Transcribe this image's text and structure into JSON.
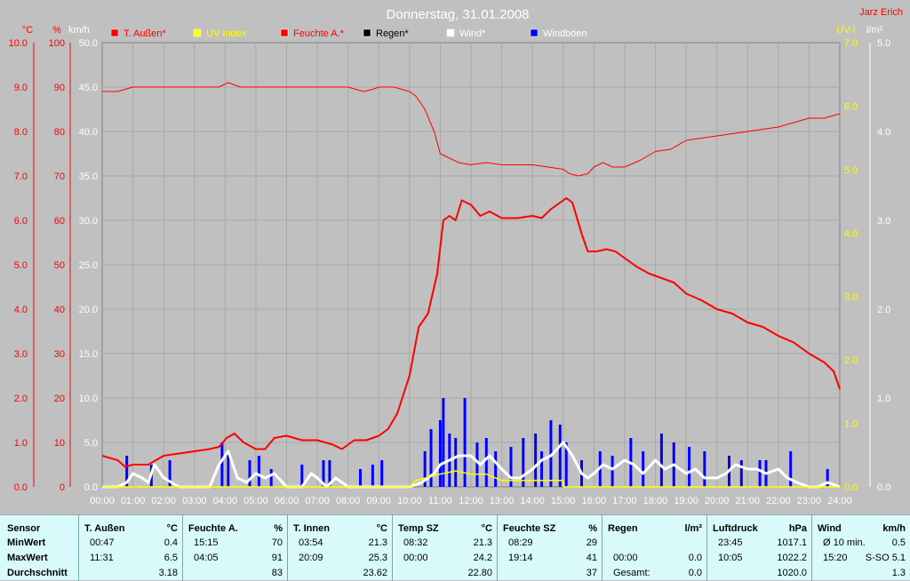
{
  "title": "Donnerstag, 31.01.2008",
  "author": "Jarz Erich",
  "colors": {
    "background": "#c0c0c0",
    "temp": "#ff0000",
    "uv": "#ffff00",
    "humidity": "#ff0000",
    "rain": "#000000",
    "wind": "#ffffff",
    "gusts": "#0000ff"
  },
  "axes": {
    "left1": {
      "unit": "°C",
      "ticks": [
        "10.0",
        "9.0",
        "8.0",
        "7.0",
        "6.0",
        "5.0",
        "4.0",
        "3.0",
        "2.0",
        "1.0",
        "0.0"
      ]
    },
    "left2": {
      "unit": "%",
      "ticks": [
        "100",
        "90",
        "80",
        "70",
        "60",
        "50",
        "40",
        "30",
        "20",
        "10",
        "0"
      ]
    },
    "left3": {
      "unit": "km/h",
      "ticks": [
        "50.0",
        "45.0",
        "40.0",
        "35.0",
        "30.0",
        "25.0",
        "20.0",
        "15.0",
        "10.0",
        "5.0",
        "0.0"
      ]
    },
    "right1": {
      "unit": "UV-I",
      "ticks": [
        "7.0",
        "6.0",
        "5.0",
        "4.0",
        "3.0",
        "2.0",
        "1.0",
        "0.0"
      ]
    },
    "right2": {
      "unit": "l/m²",
      "ticks": [
        "5.0",
        "4.0",
        "3.0",
        "2.0",
        "1.0",
        "0.0"
      ]
    },
    "x_ticks": [
      "00:00",
      "01:00",
      "02:00",
      "03:00",
      "04:00",
      "05:00",
      "06:00",
      "07:00",
      "08:00",
      "09:00",
      "10:00",
      "11:00",
      "12:00",
      "13:00",
      "14:00",
      "15:00",
      "16:00",
      "17:00",
      "18:00",
      "19:00",
      "20:00",
      "21:00",
      "22:00",
      "23:00",
      "24:00"
    ]
  },
  "legend": [
    {
      "label": "T. Außen*",
      "color": "#ff0000",
      "text_color": "#ff0000"
    },
    {
      "label": "UV Index",
      "color": "#ffff00",
      "text_color": "#ffff00"
    },
    {
      "label": "Feuchte A.*",
      "color": "#ff0000",
      "text_color": "#ff0000"
    },
    {
      "label": "Regen*",
      "color": "#000000",
      "text_color": "#000000"
    },
    {
      "label": "Wind*",
      "color": "#ffffff",
      "text_color": "#ffffff"
    },
    {
      "label": "Windböen",
      "color": "#0000ff",
      "text_color": "#ffffff"
    }
  ],
  "chart_data": {
    "type": "line",
    "x_unit": "hours",
    "xlim": [
      0,
      24
    ],
    "grid": true,
    "legend_position": "top",
    "series": [
      {
        "name": "T. Außen*",
        "axis": "°C",
        "ylim": [
          0,
          10
        ],
        "x": [
          0,
          0.5,
          0.75,
          1,
          1.5,
          2,
          2.5,
          3,
          3.5,
          3.8,
          4.05,
          4.3,
          4.6,
          5,
          5.3,
          5.6,
          6,
          6.5,
          7,
          7.5,
          7.8,
          8.2,
          8.6,
          9,
          9.3,
          9.6,
          10,
          10.3,
          10.6,
          10.9,
          11.1,
          11.3,
          11.5,
          11.7,
          12,
          12.3,
          12.6,
          13,
          13.5,
          14,
          14.3,
          14.6,
          14.9,
          15.1,
          15.3,
          15.6,
          15.8,
          16.1,
          16.4,
          16.7,
          17,
          17.4,
          17.8,
          18.2,
          18.6,
          19,
          19.5,
          20,
          20.5,
          21,
          21.5,
          22,
          22.5,
          23,
          23.5,
          23.8,
          24
        ],
        "y": [
          0.7,
          0.6,
          0.45,
          0.5,
          0.5,
          0.7,
          0.75,
          0.8,
          0.85,
          0.9,
          1.1,
          1.2,
          1.0,
          0.85,
          0.85,
          1.1,
          1.15,
          1.05,
          1.05,
          0.95,
          0.85,
          1.05,
          1.05,
          1.15,
          1.3,
          1.65,
          2.5,
          3.6,
          3.9,
          4.8,
          6.0,
          6.1,
          6.0,
          6.45,
          6.35,
          6.1,
          6.2,
          6.05,
          6.05,
          6.1,
          6.05,
          6.25,
          6.4,
          6.5,
          6.4,
          5.7,
          5.3,
          5.3,
          5.35,
          5.3,
          5.15,
          4.95,
          4.8,
          4.7,
          4.6,
          4.35,
          4.2,
          4.0,
          3.9,
          3.7,
          3.6,
          3.4,
          3.25,
          3.0,
          2.8,
          2.6,
          2.2
        ]
      },
      {
        "name": "Feuchte A.*",
        "axis": "%",
        "ylim": [
          0,
          100
        ],
        "x": [
          0,
          0.5,
          1,
          2,
          3,
          3.8,
          4.1,
          4.5,
          5,
          5.5,
          6,
          7,
          7.5,
          8,
          8.5,
          8.8,
          9,
          9.5,
          10,
          10.2,
          10.5,
          10.8,
          11,
          11.3,
          11.6,
          12,
          12.5,
          13,
          13.5,
          14,
          14.5,
          15,
          15.2,
          15.5,
          15.8,
          16,
          16.3,
          16.6,
          17,
          17.5,
          18,
          18.5,
          19,
          19.5,
          20,
          20.5,
          21,
          21.5,
          22,
          22.5,
          23,
          23.5,
          24
        ],
        "y": [
          89,
          89,
          90,
          90,
          90,
          90,
          91,
          90,
          90,
          90,
          90,
          90,
          90,
          90,
          89,
          89.5,
          90,
          90,
          89,
          88,
          85,
          80,
          75,
          74,
          73,
          72.5,
          73,
          72.5,
          72.5,
          72.5,
          72,
          71.5,
          70.5,
          70,
          70.5,
          72,
          73,
          72,
          72,
          73.5,
          75.5,
          76,
          78,
          78.5,
          79,
          79.5,
          80,
          80.5,
          81,
          82,
          83,
          83,
          84
        ]
      },
      {
        "name": "UV Index",
        "axis": "UV-I",
        "ylim": [
          0,
          7
        ],
        "x": [
          0,
          10,
          10.2,
          11,
          11.5,
          12,
          12.5,
          13,
          13.5,
          14,
          14.5,
          15,
          15.01,
          24
        ],
        "y": [
          0,
          0,
          0.1,
          0.2,
          0.25,
          0.2,
          0.2,
          0.1,
          0.1,
          0.1,
          0.1,
          0.1,
          0,
          0
        ]
      },
      {
        "name": "Wind*",
        "axis": "km/h",
        "ylim": [
          0,
          50
        ],
        "x": [
          0,
          0.5,
          0.8,
          1,
          1.3,
          1.5,
          1.7,
          2,
          2.5,
          3,
          3.5,
          3.8,
          4.1,
          4.4,
          4.7,
          5,
          5.3,
          5.6,
          6,
          6.5,
          6.8,
          7,
          7.3,
          7.6,
          8,
          8.5,
          9,
          9.5,
          10,
          10.4,
          10.8,
          11,
          11.3,
          11.6,
          12,
          12.3,
          12.6,
          13,
          13.3,
          13.6,
          14,
          14.3,
          14.6,
          15,
          15.3,
          15.6,
          15.8,
          16,
          16.3,
          16.6,
          17,
          17.3,
          17.6,
          18,
          18.3,
          18.6,
          19,
          19.3,
          19.6,
          20,
          20.3,
          20.6,
          21,
          21.3,
          21.6,
          22,
          22.3,
          22.6,
          23,
          23.3,
          23.6,
          24
        ],
        "y": [
          0,
          0,
          0.5,
          1.5,
          1,
          0.5,
          2.5,
          1,
          0,
          0,
          0,
          2.5,
          4,
          1,
          0.5,
          1.5,
          1,
          1.5,
          0,
          0,
          1.5,
          1,
          0,
          1,
          0,
          0,
          0,
          0,
          0,
          0.5,
          1.5,
          2.5,
          3,
          3.5,
          3.5,
          2.5,
          3.5,
          2,
          1,
          1,
          2,
          3,
          3.5,
          5,
          3.5,
          1.5,
          1,
          1.5,
          2.5,
          2,
          3,
          2.5,
          1.5,
          3,
          2,
          2.5,
          1.5,
          2,
          1,
          1,
          1.5,
          2.5,
          2,
          2,
          1.5,
          2,
          1,
          0.5,
          0,
          0,
          0.5,
          0
        ]
      },
      {
        "name": "Windböen",
        "axis": "km/h",
        "ylim": [
          0,
          50
        ],
        "x": [
          0.8,
          1.6,
          2.2,
          3.9,
          4.1,
          4.8,
          5.1,
          5.5,
          6.5,
          7.2,
          7.4,
          8.4,
          8.8,
          9.1,
          10.5,
          10.7,
          11.0,
          11.1,
          11.3,
          11.5,
          11.8,
          12.2,
          12.5,
          12.8,
          13.3,
          13.7,
          14.1,
          14.3,
          14.6,
          14.9,
          15.1,
          15.6,
          16.2,
          16.6,
          17.2,
          17.6,
          18.2,
          18.6,
          19.1,
          19.6,
          20.4,
          20.8,
          21.4,
          21.6,
          22.4,
          23.6
        ],
        "y": [
          3.5,
          2.5,
          3.0,
          5.0,
          4.0,
          3.0,
          3.5,
          2.0,
          2.5,
          3.0,
          3.0,
          2.0,
          2.5,
          3.0,
          4.0,
          6.5,
          7.5,
          10.0,
          6.0,
          5.5,
          10.0,
          5.0,
          5.5,
          4.0,
          4.5,
          5.5,
          6.0,
          4.0,
          7.5,
          7.0,
          5.0,
          3.0,
          4.0,
          3.5,
          5.5,
          4.0,
          6.0,
          5.0,
          4.5,
          4.0,
          3.5,
          3.0,
          3.0,
          3.0,
          4.0,
          2.0
        ]
      }
    ]
  },
  "stats": {
    "sensor": {
      "header": "Sensor",
      "rows": [
        "MinWert",
        "MaxWert",
        "Durchschnitt"
      ]
    },
    "blocks": [
      {
        "header": "T. Außen",
        "unit": "°C",
        "rows": [
          [
            "00:47",
            "0.4"
          ],
          [
            "11:31",
            "6.5"
          ],
          [
            "",
            "3.18"
          ]
        ]
      },
      {
        "header": "Feuchte A.",
        "unit": "%",
        "rows": [
          [
            "15:15",
            "70"
          ],
          [
            "04:05",
            "91"
          ],
          [
            "",
            "83"
          ]
        ]
      },
      {
        "header": "T. Innen",
        "unit": "°C",
        "rows": [
          [
            "03:54",
            "21.3"
          ],
          [
            "20:09",
            "25.3"
          ],
          [
            "",
            "23.62"
          ]
        ]
      },
      {
        "header": "Temp SZ",
        "unit": "°C",
        "rows": [
          [
            "08:32",
            "21.3"
          ],
          [
            "00:00",
            "24.2"
          ],
          [
            "",
            "22.80"
          ]
        ]
      },
      {
        "header": "Feuchte SZ",
        "unit": "%",
        "rows": [
          [
            "08:29",
            "29"
          ],
          [
            "19:14",
            "41"
          ],
          [
            "",
            "37"
          ]
        ]
      },
      {
        "header": "Regen",
        "unit": "l/m²",
        "rows": [
          [
            "",
            ""
          ],
          [
            "00:00",
            "0.0"
          ],
          [
            "Gesamt:",
            "0.0"
          ]
        ]
      },
      {
        "header": "Luftdruck",
        "unit": "hPa",
        "rows": [
          [
            "23:45",
            "1017.1"
          ],
          [
            "10:05",
            "1022.2"
          ],
          [
            "",
            "1020.0"
          ]
        ]
      },
      {
        "header": "Wind",
        "unit": "km/h",
        "rows": [
          [
            "Ø 10 min.",
            "0.5"
          ],
          [
            "15:20",
            "S-SO 5.1"
          ],
          [
            "",
            "1.3"
          ]
        ]
      }
    ]
  }
}
